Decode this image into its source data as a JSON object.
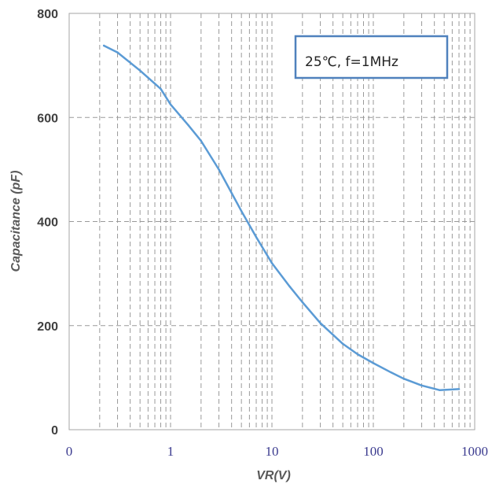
{
  "chart_data": {
    "type": "line",
    "xlabel": "VR(V)",
    "ylabel": "Capacitance (pF)",
    "x_scale": "log",
    "xlim": [
      0.1,
      1000
    ],
    "ylim": [
      0,
      800
    ],
    "x_ticks": [
      {
        "value": 0.1,
        "label": "0"
      },
      {
        "value": 1,
        "label": "1"
      },
      {
        "value": 10,
        "label": "10"
      },
      {
        "value": 100,
        "label": "100"
      },
      {
        "value": 1000,
        "label": "1000"
      }
    ],
    "y_ticks": [
      0,
      200,
      400,
      600,
      800
    ],
    "grid": true,
    "annotation": "25℃, f=1MHz",
    "line_color": "#5b9bd5",
    "series": [
      {
        "x": [
          0.22,
          0.3,
          0.5,
          0.8,
          1.0,
          1.5,
          2.0,
          3.0,
          5.0,
          7.0,
          10,
          15,
          20,
          30,
          50,
          70,
          100,
          150,
          200,
          300,
          450,
          700
        ],
        "values": [
          738,
          725,
          690,
          655,
          625,
          585,
          555,
          500,
          420,
          370,
          320,
          275,
          245,
          205,
          165,
          145,
          128,
          110,
          98,
          85,
          76,
          78
        ]
      }
    ]
  }
}
